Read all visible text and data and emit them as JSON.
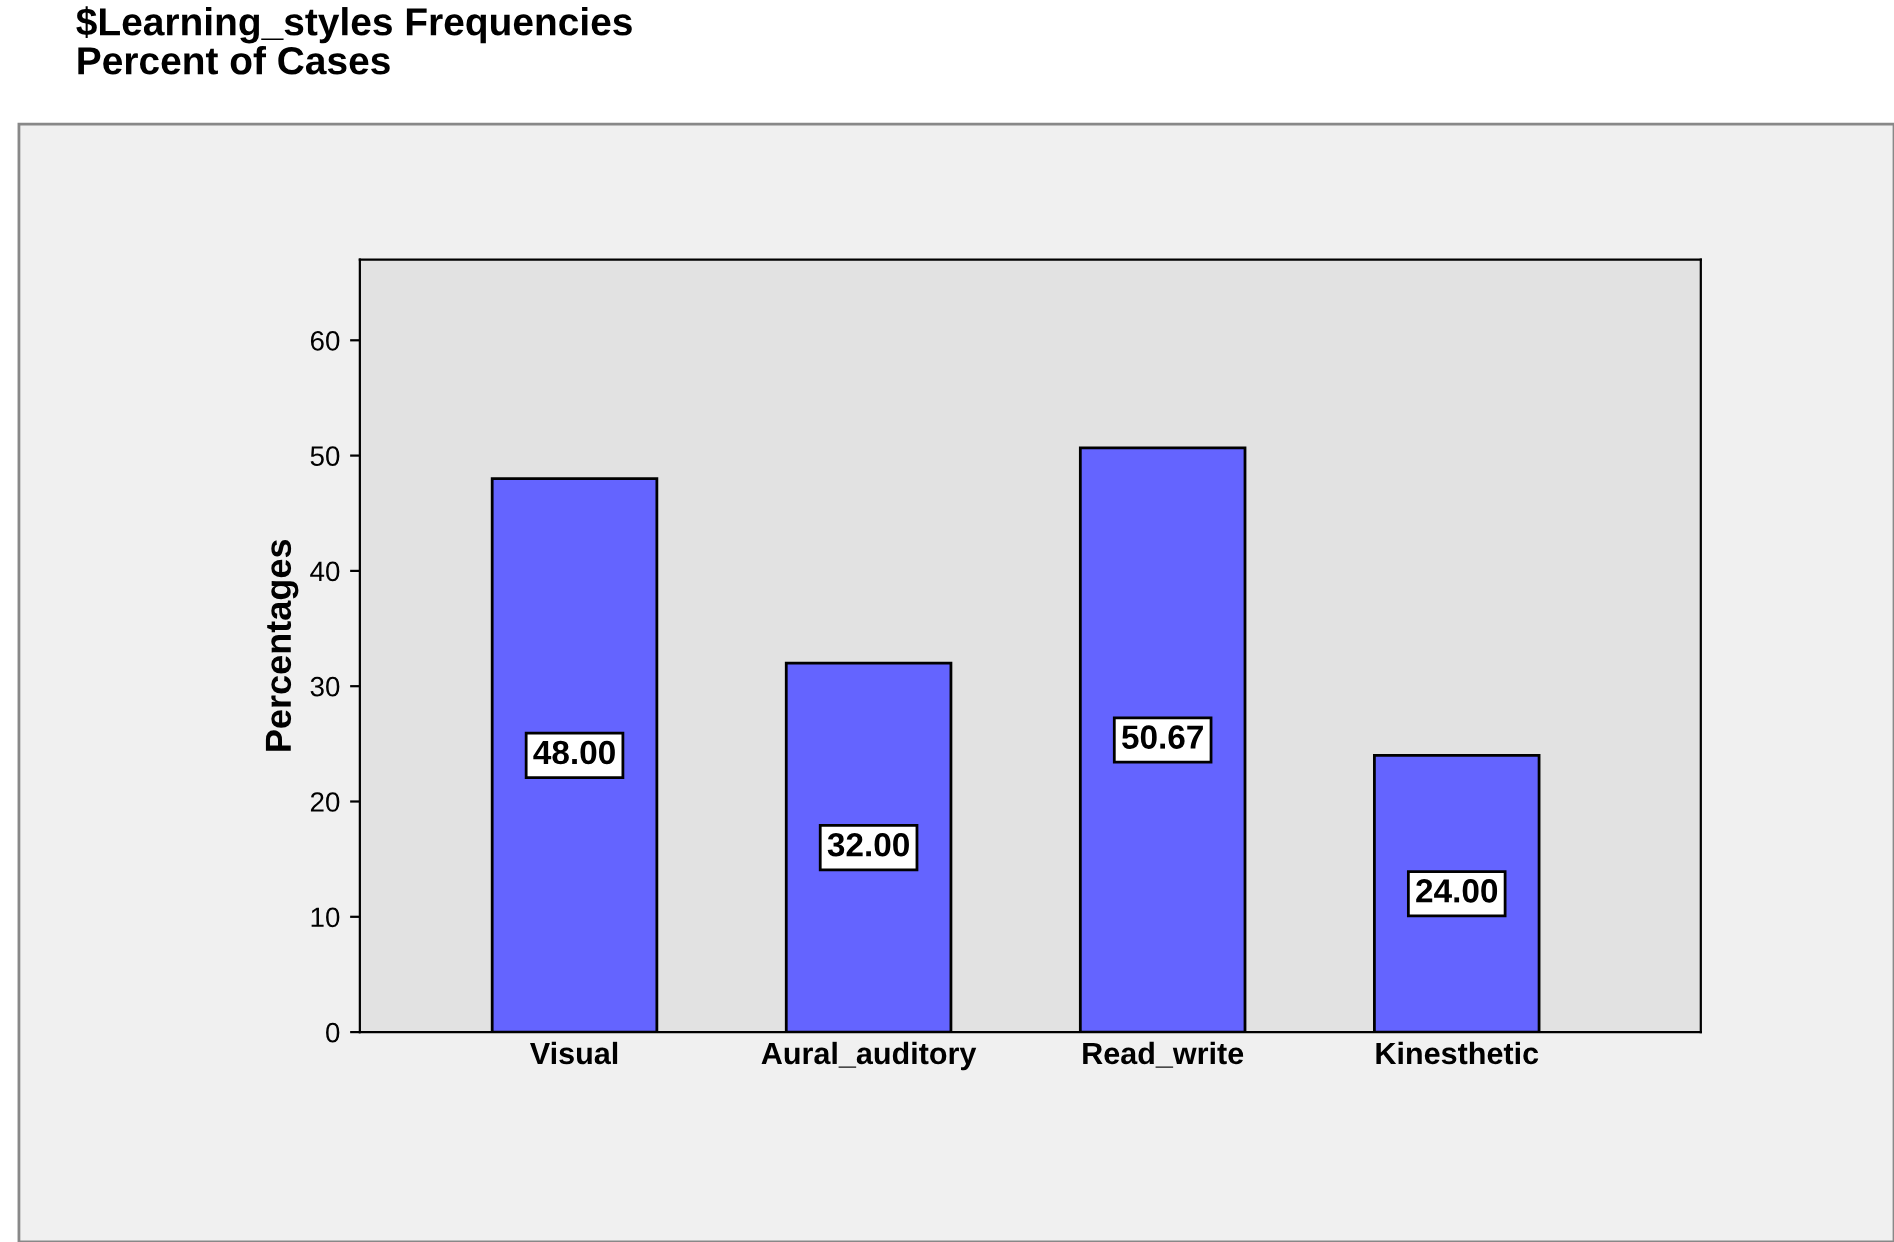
{
  "chart_data": {
    "type": "bar",
    "title": "$Learning_styles Frequencies",
    "subtitle": "Percent of Cases",
    "ylabel": "Percentages",
    "categories": [
      "Visual",
      "Aural_auditory",
      "Read_write",
      "Kinesthetic"
    ],
    "values": [
      48.0,
      32.0,
      50.67,
      24.0
    ],
    "value_labels": [
      "48.00",
      "32.00",
      "50.67",
      "24.00"
    ],
    "color": "#6464ff",
    "ylim": [
      0,
      67
    ],
    "yticks": [
      0,
      10,
      20,
      30,
      40,
      50,
      60
    ],
    "grid": false,
    "legend": false
  }
}
